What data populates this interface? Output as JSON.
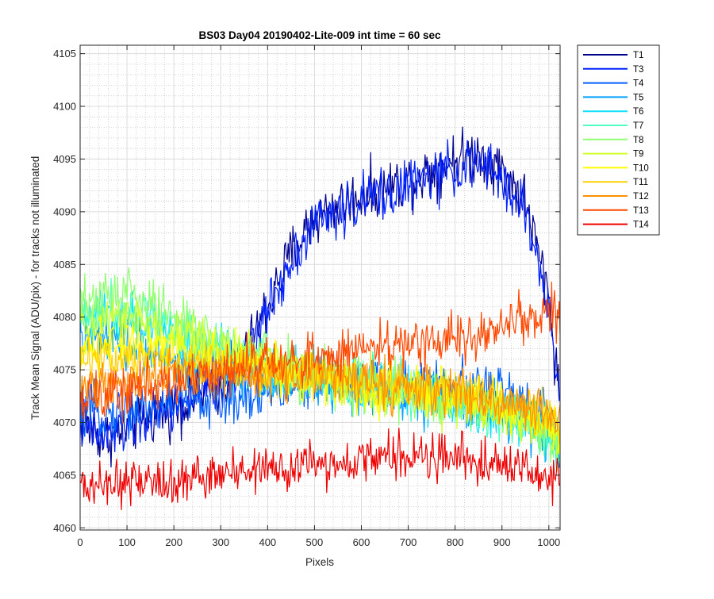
{
  "chart_data": {
    "type": "line",
    "title": "BS03 Day04 20190402-Lite-009 int time = 60 sec",
    "xlabel": "Pixels",
    "ylabel": "Track Mean Signal (ADU/pix) - for tracks not illuminated",
    "xlim": [
      0,
      1024
    ],
    "ylim": [
      4059.8,
      4105.8
    ],
    "xticks": [
      0,
      100,
      200,
      300,
      400,
      500,
      600,
      700,
      800,
      900,
      1000
    ],
    "yticks": [
      4060,
      4065,
      4070,
      4075,
      4080,
      4085,
      4090,
      4095,
      4100,
      4105
    ],
    "grid": true,
    "minor_grid": true,
    "legend_position": "outside-top-right",
    "noise_note": "each series is dense per-pixel noisy data (1024 samples); profiles below are approximate smooth trends with visible noise amplitude",
    "series": [
      {
        "name": "T1",
        "color": "#00008f",
        "noise": 2.4,
        "points": [
          [
            0,
            4070
          ],
          [
            50,
            4068.5
          ],
          [
            100,
            4069.5
          ],
          [
            200,
            4071.5
          ],
          [
            300,
            4073.5
          ],
          [
            350,
            4076
          ],
          [
            400,
            4081
          ],
          [
            450,
            4086
          ],
          [
            500,
            4089.5
          ],
          [
            600,
            4091.5
          ],
          [
            700,
            4093
          ],
          [
            800,
            4095
          ],
          [
            850,
            4095.5
          ],
          [
            900,
            4094
          ],
          [
            950,
            4091
          ],
          [
            1000,
            4082
          ],
          [
            1024,
            4072
          ]
        ]
      },
      {
        "name": "T3",
        "color": "#0020ff",
        "noise": 2.3,
        "points": [
          [
            0,
            4070
          ],
          [
            50,
            4068.5
          ],
          [
            100,
            4069.5
          ],
          [
            200,
            4071.5
          ],
          [
            300,
            4073.5
          ],
          [
            350,
            4075.5
          ],
          [
            400,
            4080.5
          ],
          [
            450,
            4085.5
          ],
          [
            500,
            4089
          ],
          [
            600,
            4091
          ],
          [
            700,
            4092.5
          ],
          [
            800,
            4094
          ],
          [
            850,
            4094.5
          ],
          [
            900,
            4093
          ],
          [
            950,
            4090
          ],
          [
            1000,
            4081
          ],
          [
            1024,
            4071
          ]
        ]
      },
      {
        "name": "T4",
        "color": "#0060ff",
        "noise": 2.2,
        "points": [
          [
            0,
            4071
          ],
          [
            100,
            4071
          ],
          [
            200,
            4072
          ],
          [
            300,
            4072
          ],
          [
            400,
            4073
          ],
          [
            500,
            4073.5
          ],
          [
            600,
            4074
          ],
          [
            700,
            4073.5
          ],
          [
            800,
            4073.5
          ],
          [
            900,
            4073
          ],
          [
            1000,
            4071
          ],
          [
            1024,
            4068
          ]
        ]
      },
      {
        "name": "T5",
        "color": "#00a0ff",
        "noise": 2.2,
        "points": [
          [
            0,
            4078
          ],
          [
            100,
            4077.5
          ],
          [
            200,
            4076
          ],
          [
            300,
            4075
          ],
          [
            400,
            4074
          ],
          [
            500,
            4073.5
          ],
          [
            600,
            4073
          ],
          [
            700,
            4072.5
          ],
          [
            800,
            4072
          ],
          [
            900,
            4071
          ],
          [
            1000,
            4069
          ],
          [
            1024,
            4067
          ]
        ]
      },
      {
        "name": "T6",
        "color": "#10e0ff",
        "noise": 2.3,
        "points": [
          [
            0,
            4080
          ],
          [
            100,
            4080
          ],
          [
            200,
            4078.5
          ],
          [
            300,
            4077
          ],
          [
            400,
            4075.5
          ],
          [
            500,
            4074.5
          ],
          [
            600,
            4073.5
          ],
          [
            700,
            4073
          ],
          [
            800,
            4072
          ],
          [
            900,
            4071
          ],
          [
            1000,
            4069
          ],
          [
            1024,
            4067
          ]
        ]
      },
      {
        "name": "T7",
        "color": "#50ffc0",
        "noise": 2.3,
        "points": [
          [
            0,
            4080
          ],
          [
            100,
            4081
          ],
          [
            200,
            4079
          ],
          [
            300,
            4077
          ],
          [
            400,
            4075.5
          ],
          [
            500,
            4074.5
          ],
          [
            600,
            4073.5
          ],
          [
            700,
            4073
          ],
          [
            800,
            4072
          ],
          [
            900,
            4071
          ],
          [
            1000,
            4069
          ],
          [
            1024,
            4067
          ]
        ]
      },
      {
        "name": "T8",
        "color": "#90ff70",
        "noise": 2.3,
        "points": [
          [
            0,
            4081
          ],
          [
            100,
            4082.5
          ],
          [
            200,
            4080
          ],
          [
            300,
            4077.5
          ],
          [
            400,
            4076
          ],
          [
            500,
            4074.5
          ],
          [
            600,
            4073.5
          ],
          [
            700,
            4073
          ],
          [
            800,
            4072
          ],
          [
            900,
            4071
          ],
          [
            1000,
            4069
          ],
          [
            1024,
            4068
          ]
        ]
      },
      {
        "name": "T9",
        "color": "#d0ff30",
        "noise": 2.2,
        "points": [
          [
            0,
            4079
          ],
          [
            100,
            4080
          ],
          [
            200,
            4078.5
          ],
          [
            300,
            4077
          ],
          [
            400,
            4075.5
          ],
          [
            500,
            4074.5
          ],
          [
            600,
            4073.5
          ],
          [
            700,
            4073
          ],
          [
            800,
            4072
          ],
          [
            900,
            4071
          ],
          [
            1000,
            4069.5
          ],
          [
            1024,
            4068
          ]
        ]
      },
      {
        "name": "T10",
        "color": "#ffff00",
        "noise": 2.2,
        "points": [
          [
            0,
            4077
          ],
          [
            100,
            4078
          ],
          [
            200,
            4077
          ],
          [
            300,
            4076
          ],
          [
            400,
            4075
          ],
          [
            500,
            4074.5
          ],
          [
            600,
            4073.5
          ],
          [
            700,
            4073
          ],
          [
            800,
            4072.5
          ],
          [
            900,
            4071.5
          ],
          [
            1000,
            4070
          ],
          [
            1024,
            4069
          ]
        ]
      },
      {
        "name": "T11",
        "color": "#ffd000",
        "noise": 2.1,
        "points": [
          [
            0,
            4076
          ],
          [
            100,
            4076.5
          ],
          [
            200,
            4076
          ],
          [
            300,
            4075.5
          ],
          [
            400,
            4075
          ],
          [
            500,
            4074.5
          ],
          [
            600,
            4074
          ],
          [
            700,
            4073.5
          ],
          [
            800,
            4073
          ],
          [
            900,
            4072
          ],
          [
            1000,
            4070.5
          ],
          [
            1024,
            4069.5
          ]
        ]
      },
      {
        "name": "T12",
        "color": "#ff9000",
        "noise": 2.1,
        "points": [
          [
            0,
            4073.5
          ],
          [
            100,
            4074
          ],
          [
            200,
            4074.5
          ],
          [
            300,
            4074.5
          ],
          [
            400,
            4074.5
          ],
          [
            500,
            4074.5
          ],
          [
            600,
            4074
          ],
          [
            700,
            4073.5
          ],
          [
            800,
            4073
          ],
          [
            900,
            4072
          ],
          [
            1000,
            4071
          ],
          [
            1024,
            4070
          ]
        ]
      },
      {
        "name": "T13",
        "color": "#ff4800",
        "noise": 2.2,
        "points": [
          [
            0,
            4072
          ],
          [
            50,
            4072.5
          ],
          [
            100,
            4073
          ],
          [
            200,
            4074
          ],
          [
            300,
            4075
          ],
          [
            400,
            4075.5
          ],
          [
            500,
            4076
          ],
          [
            600,
            4077
          ],
          [
            700,
            4077.5
          ],
          [
            800,
            4078
          ],
          [
            900,
            4079
          ],
          [
            950,
            4080
          ],
          [
            1000,
            4080.5
          ],
          [
            1024,
            4080
          ]
        ]
      },
      {
        "name": "T14",
        "color": "#ee0000",
        "noise": 2.0,
        "points": [
          [
            0,
            4064
          ],
          [
            100,
            4064
          ],
          [
            200,
            4064.5
          ],
          [
            300,
            4065
          ],
          [
            400,
            4065.5
          ],
          [
            500,
            4066
          ],
          [
            600,
            4066.5
          ],
          [
            700,
            4067
          ],
          [
            800,
            4066.5
          ],
          [
            900,
            4066
          ],
          [
            1000,
            4065
          ],
          [
            1024,
            4064.5
          ]
        ]
      }
    ]
  }
}
